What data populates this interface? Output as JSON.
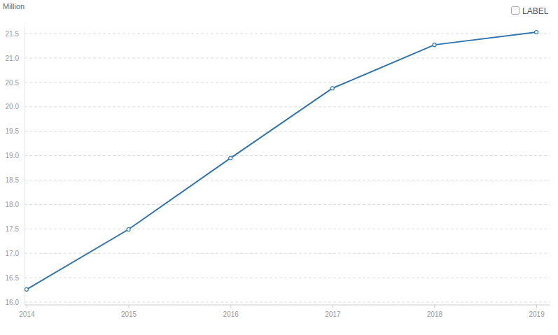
{
  "chart_data": {
    "type": "line",
    "y_label": "Million",
    "annotations": [
      "LABEL"
    ],
    "x": [
      2014,
      2015,
      2016,
      2017,
      2018,
      2019
    ],
    "values": [
      16.26,
      17.49,
      18.95,
      20.38,
      21.27,
      21.53
    ],
    "color": "#3075ae",
    "marker": "circle",
    "xlim": [
      2013.98,
      2019.13
    ],
    "xticks": [
      2014,
      2015,
      2016,
      2017,
      2018,
      2019
    ],
    "ylim": [
      15.95,
      21.65
    ],
    "yticks": [
      {
        "value": 16,
        "label": "16.0"
      },
      16.5,
      {
        "value": 17,
        "label": "17.0"
      },
      17.5,
      {
        "value": 18,
        "label": "18.0"
      },
      18.5,
      {
        "value": 19,
        "label": "19.0"
      },
      19.5,
      {
        "value": 20,
        "label": "20.0"
      },
      20.5,
      {
        "value": 21,
        "label": "21.0"
      },
      21.5
    ],
    "grid": true
  }
}
